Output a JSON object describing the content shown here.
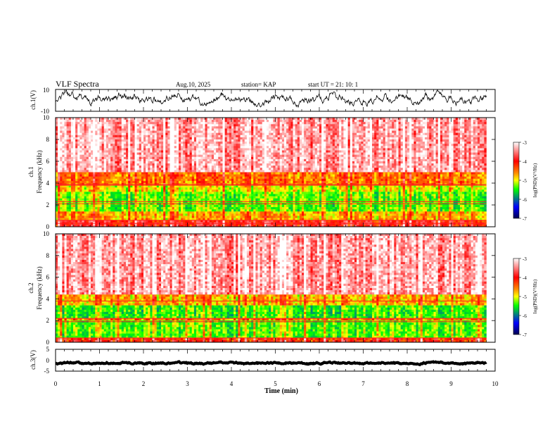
{
  "header": {
    "title": "VLF Spectra",
    "date": "Aug.10, 2025",
    "station": "station= KAP",
    "start": "start  UT =   21: 10: 1"
  },
  "chart_data": [
    {
      "type": "line",
      "name": "ch1-waveform",
      "ylabel": "ch.1(V)",
      "ylim": [
        -10,
        10
      ],
      "yticks": [
        "10",
        "-10"
      ],
      "x_range_min": [
        0,
        9.8
      ],
      "description_values": {
        "mean_v": 1.5,
        "amplitude_v": 5
      }
    },
    {
      "type": "heatmap",
      "name": "ch1-spectrogram",
      "ylabel": "ch.1\nFrequency (kHz)",
      "ylabel_line1": "ch.1",
      "ylabel_line2": "Frequency (kHz)",
      "ylim_khz": [
        0,
        10
      ],
      "yticks": [
        "0",
        "2",
        "4",
        "6",
        "8",
        "10"
      ],
      "bands_log_psd": [
        {
          "f_khz": [
            0,
            0.6
          ],
          "level": -3.8
        },
        {
          "f_khz": [
            0.6,
            1.4
          ],
          "level": -4.4
        },
        {
          "f_khz": [
            1.4,
            3.2
          ],
          "level": -4.9
        },
        {
          "f_khz": [
            3.2,
            3.8
          ],
          "level": -4.6
        },
        {
          "f_khz": [
            3.8,
            5.0
          ],
          "level": -4.2
        },
        {
          "f_khz": [
            5.0,
            10
          ],
          "level": -3.3
        }
      ],
      "lines_khz": [
        0.3,
        0.6,
        2.1,
        2.3,
        3.8,
        3.9
      ]
    },
    {
      "type": "heatmap",
      "name": "ch2-spectrogram",
      "ylabel_line1": "ch.2",
      "ylabel_line2": "Frequency (kHz)",
      "ylim_khz": [
        0,
        10
      ],
      "yticks": [
        "0",
        "2",
        "4",
        "6",
        "8",
        "10"
      ],
      "bands_log_psd": [
        {
          "f_khz": [
            0,
            0.5
          ],
          "level": -3.9
        },
        {
          "f_khz": [
            0.5,
            2.0
          ],
          "level": -4.9
        },
        {
          "f_khz": [
            2.0,
            2.3
          ],
          "level": -4.2
        },
        {
          "f_khz": [
            2.3,
            3.4
          ],
          "level": -5.0
        },
        {
          "f_khz": [
            3.4,
            4.5
          ],
          "level": -4.4
        },
        {
          "f_khz": [
            4.5,
            10
          ],
          "level": -3.3
        }
      ],
      "lines_khz": [
        0.4,
        1.9,
        2.2,
        3.8
      ]
    },
    {
      "type": "line",
      "name": "ch3-waveform",
      "ylabel": "ch.3(V)",
      "ylim": [
        -5,
        5
      ],
      "yticks": [
        "5",
        "0",
        "-5"
      ],
      "x_range_min": [
        0,
        9.8
      ],
      "description_values": {
        "mean_v": -1.3,
        "amplitude_v": 0.4
      }
    }
  ],
  "xaxis": {
    "label": "Time (min)",
    "range": [
      0,
      10
    ],
    "ticks": [
      "0",
      "1",
      "2",
      "3",
      "4",
      "5",
      "6",
      "7",
      "8",
      "9",
      "10"
    ]
  },
  "colorbar": {
    "label": "log(PSD)(V²/Hz)",
    "range": [
      -7,
      -3
    ],
    "ticks": [
      "-3",
      "-4",
      "-5",
      "-6",
      "-7"
    ],
    "colors": [
      "#ffffff",
      "#ff0000",
      "#ff8800",
      "#ffff00",
      "#00ff00",
      "#0000ff",
      "#000050"
    ]
  }
}
